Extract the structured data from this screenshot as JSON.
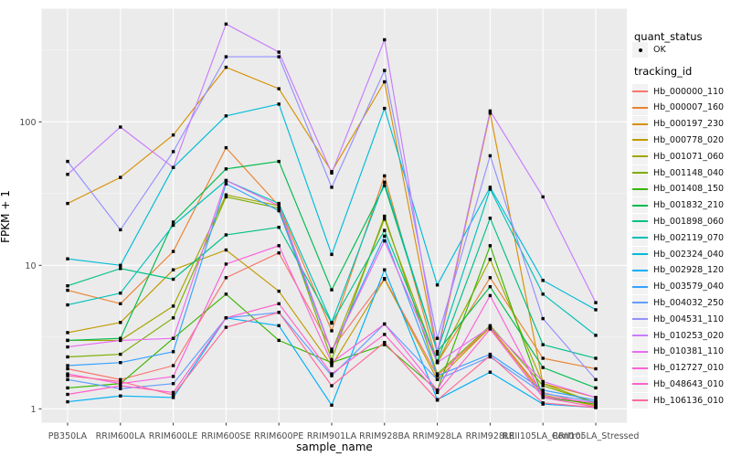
{
  "axes": {
    "x_title": "sample_name",
    "y_title": "FPKM + 1",
    "x_labels": [
      "PB350LA",
      "RRIM600LA",
      "RRIM600LE",
      "RRIM600SE",
      "RRIM600PE",
      "RRIM901LA",
      "RRIM928BA",
      "RRIM928LA",
      "RRIM928LE",
      "RRII105LA_Control",
      "RRII105LA_Stressed"
    ],
    "y_tick_labels": [
      "1",
      "10",
      "100"
    ]
  },
  "legend": {
    "quant_title": "quant_status",
    "quant_ok_label": "OK",
    "tracking_title": "tracking_id"
  },
  "colors": {
    "panel_bg": "#EBEBEB",
    "grid_major": "#FFFFFF",
    "grid_minor": "#F7F7F7",
    "tick_text": "#4D4D4D",
    "tick_mark": "#333333",
    "marker": "#000000",
    "legend_key_bg": "#F2F2F2"
  },
  "chart_data": {
    "type": "line",
    "title": "",
    "xlabel": "sample_name",
    "ylabel": "FPKM + 1",
    "y_scale": "log10",
    "ylim": [
      0.8,
      600
    ],
    "y_major_ticks": [
      1,
      10,
      100
    ],
    "y_minor_ticks": [
      3.162,
      31.62,
      316.2
    ],
    "grid": true,
    "legend_position": "right",
    "point_marker": "black-square",
    "categories": [
      "PB350LA",
      "RRIM600LA",
      "RRIM600LE",
      "RRIM600SE",
      "RRIM600PE",
      "RRIM901LA",
      "RRIM928BA",
      "RRIM928LA",
      "RRIM928LE",
      "RRII105LA_Control",
      "RRII105LA_Stressed"
    ],
    "series": [
      {
        "name": "Hb_000000_110",
        "color": "#F8766D",
        "values": [
          1.9,
          1.6,
          2.0,
          8.2,
          12.2,
          2.6,
          8.1,
          1.7,
          3.7,
          1.3,
          1.05
        ]
      },
      {
        "name": "Hb_000007_160",
        "color": "#EA8331",
        "values": [
          6.7,
          5.4,
          12.5,
          66,
          26,
          3.5,
          42,
          2.1,
          8.2,
          2.25,
          1.9
        ]
      },
      {
        "name": "Hb_000197_230",
        "color": "#D89000",
        "values": [
          27,
          41,
          81,
          240,
          170,
          45,
          190,
          2.4,
          115,
          1.5,
          1.2
        ]
      },
      {
        "name": "Hb_000778_020",
        "color": "#C09B00",
        "values": [
          3.4,
          4.0,
          9.3,
          12.8,
          6.6,
          2.0,
          8.0,
          1.6,
          3.7,
          1.25,
          1.05
        ]
      },
      {
        "name": "Hb_001071_060",
        "color": "#A3A500",
        "values": [
          3.0,
          3.0,
          5.2,
          31,
          26,
          2.5,
          21,
          2.1,
          11,
          1.5,
          1.1
        ]
      },
      {
        "name": "Hb_001148_040",
        "color": "#7CAE00",
        "values": [
          2.3,
          2.4,
          4.3,
          30,
          25,
          2.2,
          22,
          1.75,
          3.8,
          1.45,
          1.1
        ]
      },
      {
        "name": "Hb_001408_150",
        "color": "#39B600",
        "values": [
          1.4,
          1.5,
          3.1,
          6.3,
          3.0,
          2.1,
          2.8,
          1.35,
          13.7,
          1.2,
          1.08
        ]
      },
      {
        "name": "Hb_001832_210",
        "color": "#00BB4E",
        "values": [
          3.0,
          3.1,
          20,
          47,
          53,
          6.75,
          36,
          2.5,
          7.1,
          1.94,
          1.4
        ]
      },
      {
        "name": "Hb_001898_060",
        "color": "#00C087",
        "values": [
          7.2,
          9.5,
          8.0,
          16.3,
          18.4,
          3.95,
          17.5,
          2.15,
          21.3,
          2.8,
          2.25
        ]
      },
      {
        "name": "Hb_002119_070",
        "color": "#00C0B8",
        "values": [
          5.3,
          6.4,
          19,
          39,
          27,
          4.0,
          38,
          2.5,
          34,
          6.3,
          3.25
        ]
      },
      {
        "name": "Hb_002324_040",
        "color": "#00BCD8",
        "values": [
          11.1,
          10,
          48,
          110,
          133,
          11.9,
          124,
          7.3,
          35,
          7.85,
          4.9
        ]
      },
      {
        "name": "Hb_002928_120",
        "color": "#00B0F6",
        "values": [
          1.12,
          1.23,
          1.2,
          4.3,
          3.8,
          1.06,
          9.3,
          1.16,
          1.8,
          1.08,
          1.02
        ]
      },
      {
        "name": "Hb_003579_040",
        "color": "#35A2FF",
        "values": [
          2.0,
          2.1,
          2.5,
          37,
          24,
          2.5,
          16,
          1.7,
          2.4,
          1.35,
          1.15
        ]
      },
      {
        "name": "Hb_004032_250",
        "color": "#619CFF",
        "values": [
          1.6,
          1.38,
          1.5,
          4.3,
          4.7,
          1.7,
          3.9,
          1.6,
          2.3,
          1.28,
          1.12
        ]
      },
      {
        "name": "Hb_004531_110",
        "color": "#9590FF",
        "values": [
          53,
          17.7,
          62,
          284,
          284,
          35,
          228,
          3.1,
          58,
          4.25,
          1.6
        ]
      },
      {
        "name": "Hb_010253_020",
        "color": "#C77CFF",
        "values": [
          43,
          92,
          48,
          480,
          306,
          44,
          373,
          2.5,
          119,
          30,
          5.5
        ]
      },
      {
        "name": "Hb_010381_110",
        "color": "#E76BF3",
        "values": [
          2.7,
          3.0,
          3.1,
          39,
          26,
          2.5,
          14.8,
          2.1,
          3.7,
          1.55,
          1.2
        ]
      },
      {
        "name": "Hb_012727_010",
        "color": "#FA62DB",
        "values": [
          1.75,
          1.5,
          1.68,
          10.2,
          13.7,
          2.1,
          3.9,
          1.35,
          6.15,
          1.22,
          1.1
        ]
      },
      {
        "name": "Hb_048643_010",
        "color": "#FF61C9",
        "values": [
          1.26,
          1.45,
          1.3,
          4.3,
          5.4,
          1.75,
          3.3,
          1.3,
          3.6,
          1.2,
          1.03
        ]
      },
      {
        "name": "Hb_106136_010",
        "color": "#FF6A98",
        "values": [
          1.7,
          1.55,
          1.25,
          3.7,
          4.7,
          1.45,
          2.9,
          1.15,
          2.35,
          1.1,
          1.02
        ]
      }
    ]
  }
}
